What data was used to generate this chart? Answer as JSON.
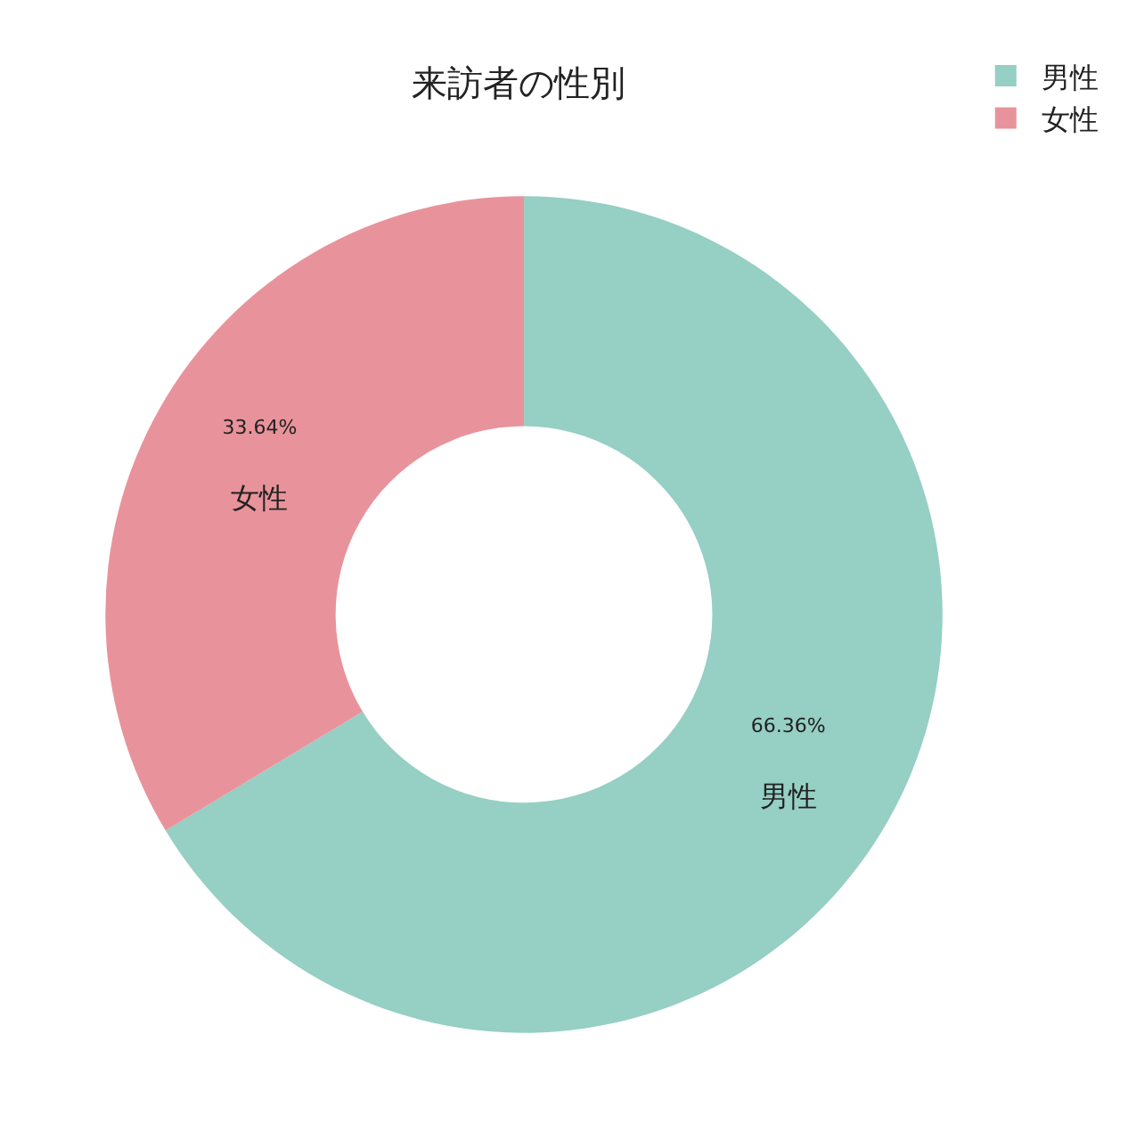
{
  "chart_data": {
    "type": "donut",
    "title": "来訪者の性別",
    "categories": [
      "男性",
      "女性"
    ],
    "values": [
      66.36,
      33.64
    ],
    "value_labels": [
      "66.36%",
      "33.64%"
    ],
    "colors": [
      "#96cfc4",
      "#e8939b"
    ],
    "legend": "top right"
  }
}
